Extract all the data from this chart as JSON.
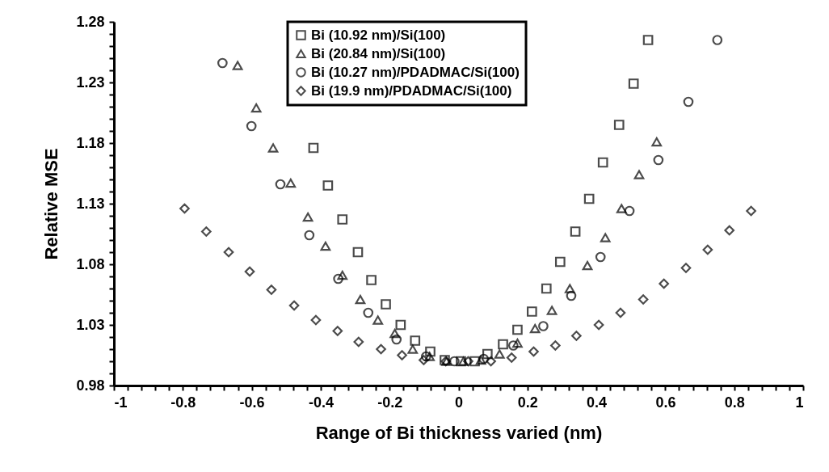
{
  "chart_data": {
    "type": "scatter",
    "xlabel": "Range of Bi thickness varied (nm)",
    "ylabel": "Relative MSE",
    "xlim": [
      -1,
      1
    ],
    "ylim": [
      0.98,
      1.28
    ],
    "xticks": [
      -1,
      {
        "value": -0.96,
        "label": null
      },
      {
        "value": -0.92,
        "label": null
      },
      {
        "value": -0.88,
        "label": null
      },
      {
        "value": -0.84,
        "label": null
      },
      -0.8,
      {
        "value": -0.76,
        "label": null
      },
      {
        "value": -0.72,
        "label": null
      },
      {
        "value": -0.68,
        "label": null
      },
      {
        "value": -0.64,
        "label": null
      },
      -0.6,
      {
        "value": -0.56,
        "label": null
      },
      {
        "value": -0.52,
        "label": null
      },
      {
        "value": -0.48,
        "label": null
      },
      {
        "value": -0.44,
        "label": null
      },
      -0.4,
      {
        "value": -0.36,
        "label": null
      },
      {
        "value": -0.32,
        "label": null
      },
      {
        "value": -0.28,
        "label": null
      },
      {
        "value": -0.24,
        "label": null
      },
      -0.2,
      {
        "value": -0.16,
        "label": null
      },
      {
        "value": -0.12,
        "label": null
      },
      {
        "value": -0.08,
        "label": null
      },
      {
        "value": -0.04,
        "label": null
      },
      0,
      {
        "value": 0.04,
        "label": null
      },
      {
        "value": 0.08,
        "label": null
      },
      {
        "value": 0.12,
        "label": null
      },
      {
        "value": 0.16,
        "label": null
      },
      0.2,
      {
        "value": 0.24,
        "label": null
      },
      {
        "value": 0.28,
        "label": null
      },
      {
        "value": 0.32,
        "label": null
      },
      {
        "value": 0.36,
        "label": null
      },
      0.4,
      {
        "value": 0.44,
        "label": null
      },
      {
        "value": 0.48,
        "label": null
      },
      {
        "value": 0.52,
        "label": null
      },
      {
        "value": 0.56,
        "label": null
      },
      0.6,
      {
        "value": 0.64,
        "label": null
      },
      {
        "value": 0.68,
        "label": null
      },
      {
        "value": 0.72,
        "label": null
      },
      {
        "value": 0.76,
        "label": null
      },
      0.8,
      {
        "value": 0.84,
        "label": null
      },
      {
        "value": 0.88,
        "label": null
      },
      {
        "value": 0.92,
        "label": null
      },
      {
        "value": 0.96,
        "label": null
      },
      1
    ],
    "yticks": [
      0.98,
      {
        "value": 0.99,
        "label": null
      },
      {
        "value": 1.0,
        "label": null
      },
      {
        "value": 1.01,
        "label": null
      },
      {
        "value": 1.02,
        "label": null
      },
      1.03,
      {
        "value": 1.04,
        "label": null
      },
      {
        "value": 1.05,
        "label": null
      },
      {
        "value": 1.06,
        "label": null
      },
      {
        "value": 1.07,
        "label": null
      },
      1.08,
      {
        "value": 1.09,
        "label": null
      },
      {
        "value": 1.1,
        "label": null
      },
      {
        "value": 1.11,
        "label": null
      },
      {
        "value": 1.12,
        "label": null
      },
      1.13,
      {
        "value": 1.14,
        "label": null
      },
      {
        "value": 1.15,
        "label": null
      },
      {
        "value": 1.16,
        "label": null
      },
      {
        "value": 1.17,
        "label": null
      },
      1.18,
      {
        "value": 1.19,
        "label": null
      },
      {
        "value": 1.2,
        "label": null
      },
      {
        "value": 1.21,
        "label": null
      },
      {
        "value": 1.22,
        "label": null
      },
      1.23,
      {
        "value": 1.24,
        "label": null
      },
      {
        "value": 1.25,
        "label": null
      },
      {
        "value": 1.26,
        "label": null
      },
      {
        "value": 1.27,
        "label": null
      },
      1.28
    ],
    "grid": false,
    "legend": "top",
    "series": [
      {
        "name": "Bi (10.92 nm)/Si(100)",
        "color": "#000000",
        "marker": "square",
        "x": [
          -0.421,
          -0.379,
          -0.337,
          -0.292,
          -0.253,
          -0.211,
          -0.168,
          -0.126,
          -0.082,
          -0.04,
          0.007,
          0.047,
          0.084,
          0.129,
          0.171,
          0.213,
          0.255,
          0.295,
          0.339,
          0.379,
          0.419,
          0.466,
          0.508,
          0.55
        ],
        "values": [
          1.176,
          1.145,
          1.117,
          1.09,
          1.067,
          1.047,
          1.03,
          1.017,
          1.008,
          1.001,
          1.0,
          1.0,
          1.006,
          1.014,
          1.026,
          1.041,
          1.06,
          1.082,
          1.107,
          1.134,
          1.164,
          1.195,
          1.229,
          1.265
        ]
      },
      {
        "name": "Bi (20.84 nm)/Si(100)",
        "color": "#000000",
        "marker": "triangle",
        "x": [
          -0.641,
          -0.587,
          -0.538,
          -0.487,
          -0.437,
          -0.386,
          -0.337,
          -0.285,
          -0.234,
          -0.185,
          -0.133,
          -0.084,
          -0.035,
          0.014,
          0.065,
          0.119,
          0.171,
          0.222,
          0.271,
          0.323,
          0.374,
          0.426,
          0.473,
          0.524,
          0.575
        ],
        "values": [
          1.244,
          1.209,
          1.176,
          1.147,
          1.119,
          1.095,
          1.071,
          1.051,
          1.034,
          1.023,
          1.01,
          1.004,
          1.0,
          1.0,
          1.001,
          1.006,
          1.015,
          1.027,
          1.042,
          1.06,
          1.079,
          1.102,
          1.126,
          1.154,
          1.181
        ]
      },
      {
        "name": "Bi (10.27 nm)/PDADMAC/Si(100)",
        "color": "#000000",
        "marker": "circle",
        "x": [
          -0.685,
          -0.601,
          -0.517,
          -0.433,
          -0.349,
          -0.262,
          -0.18,
          -0.094,
          -0.012,
          0.073,
          0.159,
          0.246,
          0.327,
          0.412,
          0.496,
          0.58,
          0.667,
          0.751
        ],
        "values": [
          1.246,
          1.194,
          1.146,
          1.104,
          1.068,
          1.04,
          1.018,
          1.004,
          1.0,
          1.002,
          1.013,
          1.029,
          1.054,
          1.086,
          1.124,
          1.166,
          1.214,
          1.265
        ]
      },
      {
        "name": "Bi (19.9 nm)/PDADMAC/Si(100)",
        "color": "#000000",
        "marker": "diamond",
        "x": [
          -0.795,
          -0.732,
          -0.667,
          -0.606,
          -0.543,
          -0.477,
          -0.414,
          -0.351,
          -0.29,
          -0.225,
          -0.164,
          -0.101,
          -0.037,
          0.028,
          0.094,
          0.154,
          0.218,
          0.281,
          0.342,
          0.407,
          0.47,
          0.536,
          0.596,
          0.66,
          0.723,
          0.786,
          0.849
        ],
        "values": [
          1.126,
          1.107,
          1.09,
          1.074,
          1.059,
          1.046,
          1.034,
          1.025,
          1.016,
          1.01,
          1.005,
          1.001,
          1.0,
          1.0,
          1.0,
          1.003,
          1.008,
          1.013,
          1.021,
          1.03,
          1.04,
          1.051,
          1.064,
          1.077,
          1.092,
          1.108,
          1.124
        ]
      }
    ]
  }
}
